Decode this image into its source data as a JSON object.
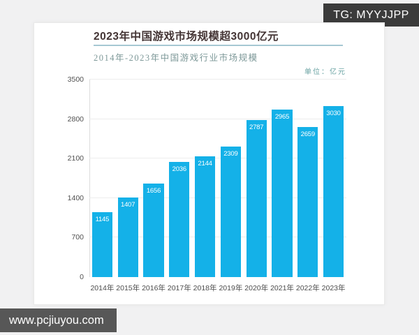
{
  "overlays": {
    "telegram_badge": "TG: MYYJJPP",
    "watermark": "www.pcjiuyou.com"
  },
  "article": {
    "title": "2023年中国游戏市场规模超3000亿元",
    "subtitle": "2014年-2023年中国游戏行业市场规模",
    "unit_label": "单位：亿元"
  },
  "colors": {
    "bar": "#14b1e8",
    "title_text": "#433434",
    "title_underline": "#a5c8d3",
    "subtitle_text": "#7d9898",
    "unit_text": "#69a2a2",
    "telegram_badge_bg": "#3b3b3b",
    "watermark_bg": "#575757",
    "page_bg": "#f1f1f2",
    "card_bg": "#ffffff"
  },
  "chart_data": {
    "type": "bar",
    "title": "2014年-2023年中国游戏行业市场规模",
    "unit": "亿元",
    "categories": [
      "2014年",
      "2015年",
      "2016年",
      "2017年",
      "2018年",
      "2019年",
      "2020年",
      "2021年",
      "2022年",
      "2023年"
    ],
    "values": [
      1145,
      1407,
      1656,
      2036,
      2144,
      2309,
      2787,
      2965,
      2659,
      3030
    ],
    "y_ticks": [
      0,
      700,
      1400,
      2100,
      2800,
      3500
    ],
    "ylim": [
      0,
      3500
    ],
    "xlabel": "",
    "ylabel": "",
    "grid": true,
    "legend": false,
    "value_label_position": "inside-top",
    "bar_color": "#14b1e8"
  }
}
